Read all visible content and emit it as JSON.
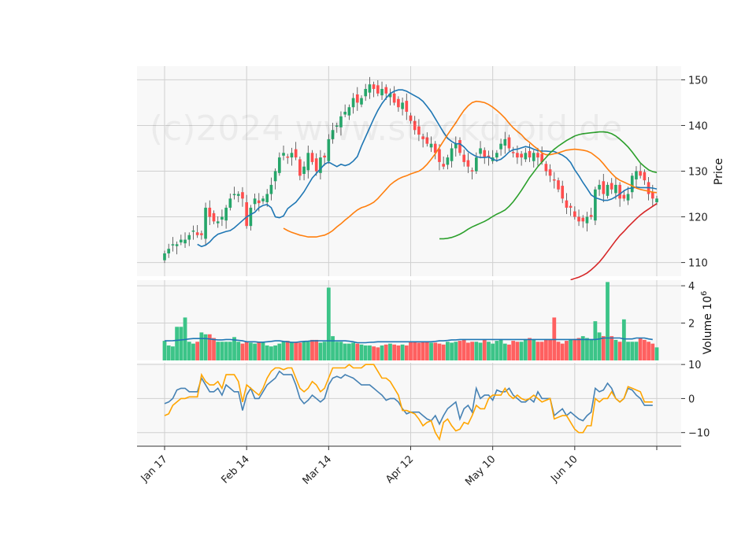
{
  "watermark": "(c)2024 www.stockdroid.de",
  "colors": {
    "up": "#26a66a",
    "down": "#ff4d4d",
    "ma_fast": "#1f77b4",
    "ma_mid": "#ff7f0e",
    "ma_slow": "#2ca02c",
    "ma_long": "#d62728",
    "vol_up": "#3cc488",
    "vol_down": "#ff6060",
    "vol_ma": "#1f77b4",
    "osc_a": "#4682b4",
    "osc_b": "#ffa500",
    "panel_bg": "#f8f8f8",
    "grid": "#d0d0d0"
  },
  "chart_data": [
    {
      "type": "candlestick",
      "ylabel": "Price",
      "ylim": [
        107,
        153
      ],
      "yticks": [
        "110",
        "120",
        "130",
        "140",
        "150"
      ],
      "xticks": [
        "Jan 17",
        "Feb 14",
        "Mar 14",
        "Apr 12",
        "May 10",
        "Jun 10",
        ""
      ],
      "xtick_index": [
        0,
        20,
        40,
        60,
        80,
        100,
        120
      ],
      "grid": true,
      "closes": [
        112,
        113,
        114,
        114,
        115,
        115,
        116,
        117,
        116,
        116,
        122,
        120,
        119,
        119,
        120,
        122,
        124,
        125,
        125,
        124,
        118,
        122,
        124,
        123,
        124,
        125,
        127,
        130,
        133,
        134,
        133,
        134,
        133,
        129,
        131,
        134,
        132,
        130,
        133,
        133,
        137,
        139,
        140,
        142,
        143,
        144,
        146,
        145,
        146,
        148,
        149,
        148,
        147,
        148,
        147,
        147,
        145,
        144,
        145,
        143,
        141,
        139,
        138,
        137,
        136,
        136,
        134,
        132,
        131,
        133,
        135,
        136,
        134,
        132,
        131,
        130,
        133,
        135,
        133,
        133,
        133,
        134,
        136,
        137,
        135,
        134,
        133,
        133,
        134,
        133,
        134,
        133,
        132,
        130,
        129,
        128,
        126,
        124,
        122,
        122,
        120,
        119,
        119,
        120,
        120,
        126,
        127,
        125,
        127,
        126,
        127,
        124,
        124,
        125,
        129,
        130,
        129,
        128,
        125,
        124,
        124
      ],
      "ma": [
        {
          "values": [
            114,
            113.5,
            113.8,
            114.5,
            115.5,
            116.2,
            116.5,
            116.8,
            117,
            117.6,
            118.4,
            119.2,
            120,
            120.5,
            121,
            122,
            122.5,
            122.7,
            122,
            120,
            119.8,
            120.2,
            121.8,
            122.5,
            123.2,
            124.3,
            125.5,
            127,
            128.5,
            129.5,
            130.5,
            131.5,
            132,
            131.5,
            131,
            131.5,
            131.2,
            131.5,
            132.2,
            133.2,
            135.5,
            137.5,
            139.5,
            141.5,
            143.3,
            144.8,
            146,
            147,
            147.5,
            147.8,
            147.8,
            147.5,
            147,
            146.5,
            146,
            145.3,
            144.2,
            143,
            141.5,
            140,
            138.5,
            137.2,
            136.5,
            136,
            136,
            135.3,
            134.3,
            133.7,
            133.2,
            133,
            133,
            133.1,
            132.6,
            132.3,
            132.6,
            133.3,
            134.2,
            134.7,
            134.8,
            135.1,
            135.4,
            135.2,
            134.8,
            134.5,
            134.4,
            134.4,
            134.3,
            134.3,
            133.9,
            133.5,
            132.9,
            131.9,
            130.3,
            129,
            127.5,
            126.2,
            124.8,
            124.2,
            123.9,
            123.6,
            123.6,
            123.9,
            124.4,
            125,
            125.7,
            126.2,
            126.3,
            126.5,
            126.4,
            126.4,
            126.4,
            126.3,
            126.1
          ],
          "color_key": "ma_fast"
        },
        {
          "values": [
            117.5,
            117,
            116.6,
            116.3,
            116,
            115.8,
            115.6,
            115.6,
            115.6,
            115.8,
            116,
            116.4,
            117,
            117.8,
            118.5,
            119.3,
            120,
            120.8,
            121.5,
            122,
            122.3,
            122.7,
            123.2,
            124,
            125,
            126,
            127,
            127.7,
            128.3,
            128.7,
            129,
            129.4,
            129.7,
            130,
            130.6,
            131.5,
            132.6,
            133.8,
            135.2,
            136.6,
            138,
            139.3,
            140.6,
            142,
            143.3,
            144.3,
            145,
            145.3,
            145.2,
            145,
            144.6,
            144,
            143.3,
            142.5,
            141.6,
            140.5,
            139.5,
            138.7,
            138,
            137,
            136.3,
            135.5,
            134.8,
            134,
            133.6,
            133.6,
            133.8,
            134,
            134.3,
            134.6,
            134.7,
            134.8,
            134.7,
            134.6,
            134.4,
            134,
            133.3,
            132.6,
            131.6,
            130.5,
            129.5,
            128.6,
            128,
            127.6,
            127.2,
            126.8,
            126.3,
            126,
            125.8,
            125.6,
            125.4,
            125.3
          ],
          "color_key": "ma_mid"
        },
        {
          "values": [
            115.2,
            115.2,
            115.3,
            115.5,
            115.8,
            116.2,
            116.7,
            117.3,
            117.8,
            118.2,
            118.6,
            119,
            119.5,
            120.1,
            120.6,
            121,
            121.5,
            122.3,
            123.3,
            124.5,
            125.8,
            127.2,
            128.6,
            129.8,
            131,
            132,
            133,
            134,
            134.8,
            135.5,
            136.1,
            136.7,
            137.2,
            137.7,
            138,
            138.2,
            138.3,
            138.4,
            138.5,
            138.6,
            138.6,
            138.5,
            138.2,
            137.7,
            137,
            136.2,
            135.3,
            134.2,
            133,
            131.8,
            131,
            130.3,
            129.9,
            129.7
          ],
          "color_key": "ma_slow"
        },
        {
          "values": [
            106.2,
            106.5,
            106.8,
            107.2,
            107.7,
            108.4,
            109.2,
            110.1,
            111.2,
            112.4,
            113.6,
            114.8,
            115.9,
            116.8,
            117.8,
            118.7,
            119.6,
            120.4,
            121.1,
            121.7,
            122.3,
            122.9
          ],
          "color_key": "ma_long"
        }
      ]
    },
    {
      "type": "bar",
      "ylabel": "Volume  10",
      "ylabel_sup": "6",
      "ylim": [
        0,
        4.3
      ],
      "yticks": [
        "2",
        "4"
      ],
      "values": [
        1.05,
        0.8,
        0.75,
        1.8,
        1.8,
        2.3,
        1.0,
        0.9,
        1.0,
        1.5,
        1.4,
        1.4,
        1.2,
        1.0,
        1.0,
        1.0,
        1.0,
        1.25,
        1.0,
        0.9,
        1.0,
        0.95,
        0.9,
        1.0,
        0.95,
        0.8,
        0.75,
        0.8,
        0.9,
        1.0,
        1.05,
        1.0,
        1.0,
        0.95,
        1.0,
        1.0,
        1.1,
        1.1,
        0.95,
        1.0,
        3.9,
        1.3,
        1.0,
        1.0,
        0.9,
        0.9,
        0.95,
        0.9,
        0.85,
        0.8,
        0.8,
        0.75,
        0.7,
        0.8,
        0.85,
        0.9,
        0.85,
        0.8,
        0.85,
        0.8,
        1.0,
        1.0,
        0.95,
        1.0,
        1.0,
        0.95,
        0.95,
        0.9,
        0.85,
        1.0,
        0.95,
        1.0,
        1.05,
        1.1,
        0.95,
        1.0,
        1.0,
        0.95,
        1.1,
        1.0,
        0.9,
        1.05,
        1.1,
        0.9,
        0.85,
        1.05,
        1.0,
        1.0,
        1.1,
        1.2,
        1.1,
        1.0,
        1.0,
        1.1,
        1.1,
        2.3,
        1.0,
        0.9,
        1.05,
        1.1,
        1.15,
        1.2,
        1.3,
        1.2,
        1.1,
        2.1,
        1.5,
        1.3,
        4.2,
        1.3,
        1.1,
        1.0,
        2.2,
        1.0,
        1.0,
        1.0,
        1.2,
        1.1,
        1.0,
        0.9,
        0.7
      ],
      "ma_values": [
        1.05,
        1.05,
        1.06,
        1.08,
        1.1,
        1.12,
        1.15,
        1.17,
        1.17,
        1.17,
        1.17,
        1.15,
        1.12,
        1.1,
        1.1,
        1.12,
        1.12,
        1.1,
        1.08,
        1.05,
        1.0,
        1.0,
        1.0,
        0.98,
        0.98,
        1.0,
        1.02,
        1.05,
        1.05,
        1.02,
        1.0,
        0.97,
        0.97,
        1.0,
        1.02,
        1.03,
        1.05,
        1.05,
        1.05,
        1.05,
        1.05,
        1.05,
        1.05,
        1.05,
        1.05,
        1.03,
        1.0,
        0.95,
        0.95,
        0.95,
        0.97,
        0.98,
        1.0,
        1.0,
        1.0,
        1.0,
        1.0,
        1.0,
        1.0,
        1.0,
        1.0,
        1.0,
        1.0,
        1.0,
        1.0,
        1.0,
        1.02,
        1.05,
        1.05,
        1.07,
        1.1,
        1.1,
        1.12,
        1.12,
        1.12,
        1.12,
        1.12,
        1.12,
        1.12,
        1.12,
        1.12,
        1.12,
        1.12,
        1.12,
        1.12,
        1.12,
        1.12,
        1.12,
        1.12,
        1.12,
        1.12,
        1.12,
        1.12,
        1.12,
        1.12,
        1.12,
        1.12,
        1.12,
        1.12,
        1.12,
        1.12,
        1.12,
        1.12,
        1.12,
        1.12,
        1.12,
        1.15,
        1.2,
        1.2,
        1.2,
        1.2,
        1.2,
        1.15,
        1.15,
        1.15,
        1.2,
        1.2,
        1.2,
        1.15,
        1.12
      ]
    },
    {
      "type": "line",
      "ylim": [
        -14,
        10.5
      ],
      "yticks": [
        "10",
        "0",
        "−10"
      ],
      "ytick_values": [
        10,
        0,
        -10
      ],
      "series": [
        {
          "color_key": "osc_a",
          "values": [
            -1.5,
            -1,
            0,
            2.5,
            3,
            3,
            2,
            2,
            2,
            6,
            4,
            2,
            2,
            3,
            1,
            4,
            3,
            2,
            2,
            -3.5,
            1,
            3,
            0,
            0,
            2,
            4,
            5,
            6,
            8,
            7,
            7,
            7,
            4,
            0,
            -1.5,
            -0.5,
            1,
            0,
            -1,
            0,
            4,
            6,
            6.5,
            6,
            7,
            6.5,
            6,
            5,
            4,
            4,
            4,
            3,
            2,
            1,
            -0.5,
            0,
            0,
            -1,
            -3,
            -4.5,
            -4,
            -4,
            -4,
            -5,
            -6,
            -6.5,
            -5,
            -7.5,
            -5,
            -3,
            -2,
            -1,
            -6,
            -3,
            -2,
            -4,
            3,
            0,
            1,
            1,
            -0.5,
            2.5,
            2,
            2,
            3,
            1,
            0,
            -1,
            -1,
            0,
            -1,
            2,
            0,
            0,
            0,
            -5,
            -4,
            -3,
            -5,
            -4,
            -5,
            -6,
            -6.5,
            -5,
            -4,
            3,
            2,
            2.5,
            4.5,
            3,
            0,
            -1,
            0,
            3,
            2.5,
            1,
            0,
            -2,
            -2,
            -2
          ]
        },
        {
          "color_key": "osc_b",
          "values": [
            -5,
            -4.5,
            -2,
            -1,
            0,
            0,
            0.5,
            0.5,
            0.5,
            7,
            5,
            4,
            4,
            5,
            3,
            7,
            7,
            7,
            5,
            -1,
            4,
            3,
            2,
            1,
            3,
            6,
            8,
            9,
            9,
            8.5,
            9,
            9,
            6,
            3,
            2,
            3,
            5,
            4,
            2,
            3,
            6,
            9,
            9,
            9,
            9,
            10,
            9,
            9,
            9,
            10,
            10,
            10,
            8,
            6,
            6,
            5,
            3,
            1,
            -3.5,
            -3.5,
            -4,
            -4.5,
            -6,
            -8,
            -7,
            -6.5,
            -10,
            -12,
            -7,
            -6,
            -8,
            -9.5,
            -9,
            -7,
            -7.5,
            -5,
            -2,
            -3,
            -3,
            0,
            1,
            1,
            1,
            3,
            1,
            0,
            1,
            0,
            -0.5,
            0,
            1,
            0,
            -1,
            -0.5,
            0,
            -6,
            -5.5,
            -5,
            -5,
            -7,
            -9,
            -10,
            -10,
            -8,
            -8,
            0,
            -1,
            0,
            0,
            2,
            0,
            -1,
            0,
            3.5,
            3,
            2.5,
            2,
            -1,
            -1,
            -1
          ]
        }
      ]
    }
  ]
}
